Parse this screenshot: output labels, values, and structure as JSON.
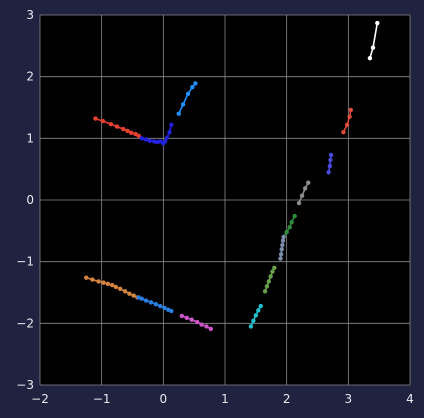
{
  "chart_data": {
    "type": "line",
    "title": "",
    "xlabel": "",
    "ylabel": "",
    "xlim": [
      -2,
      4
    ],
    "ylim": [
      -3,
      3
    ],
    "xticks": [
      -2,
      -1,
      0,
      1,
      2,
      3,
      4
    ],
    "yticks": [
      -3,
      -2,
      -1,
      0,
      1,
      2,
      3
    ],
    "grid": true,
    "background": "#000000",
    "figure_background": "#1f2340",
    "series": [
      {
        "color": "#ffffff",
        "x": [
          3.35,
          3.4,
          3.47
        ],
        "y": [
          2.3,
          2.47,
          2.87
        ]
      },
      {
        "color": "#e84030",
        "x": [
          -1.1,
          -0.98,
          -0.85,
          -0.75,
          -0.65,
          -0.58,
          -0.52,
          -0.45,
          -0.4
        ],
        "y": [
          1.32,
          1.28,
          1.23,
          1.19,
          1.15,
          1.12,
          1.09,
          1.07,
          1.04
        ]
      },
      {
        "color": "#2222dd",
        "x": [
          -0.35,
          -0.28,
          -0.22,
          -0.15,
          -0.1,
          -0.05,
          0.0,
          0.03,
          0.06,
          0.1,
          0.13
        ],
        "y": [
          1.0,
          0.98,
          0.96,
          0.95,
          0.94,
          0.95,
          0.92,
          0.95,
          1.01,
          1.1,
          1.22
        ]
      },
      {
        "color": "#1e90ff",
        "x": [
          0.25,
          0.32,
          0.4,
          0.47,
          0.52
        ],
        "y": [
          1.4,
          1.55,
          1.72,
          1.83,
          1.89
        ]
      },
      {
        "color": "#dd4b3a",
        "x": [
          2.92,
          2.98,
          3.02,
          3.04
        ],
        "y": [
          1.1,
          1.22,
          1.35,
          1.46
        ]
      },
      {
        "color": "#4a4ae0",
        "x": [
          2.68,
          2.7,
          2.71,
          2.72
        ],
        "y": [
          0.45,
          0.55,
          0.65,
          0.73
        ]
      },
      {
        "color": "#8c8c8c",
        "x": [
          2.2,
          2.25,
          2.3,
          2.35
        ],
        "y": [
          -0.05,
          0.07,
          0.19,
          0.28
        ]
      },
      {
        "color": "#2e8b3a",
        "x": [
          1.95,
          2.0,
          2.05,
          2.08,
          2.13
        ],
        "y": [
          -0.6,
          -0.52,
          -0.44,
          -0.36,
          -0.26
        ]
      },
      {
        "color": "#7b8da8",
        "x": [
          1.9,
          1.91,
          1.92,
          1.93,
          1.94,
          1.95
        ],
        "y": [
          -0.95,
          -0.88,
          -0.8,
          -0.73,
          -0.66,
          -0.6
        ]
      },
      {
        "color": "#6aa04a",
        "x": [
          1.65,
          1.68,
          1.71,
          1.74,
          1.77,
          1.8
        ],
        "y": [
          -1.48,
          -1.4,
          -1.32,
          -1.24,
          -1.16,
          -1.1
        ]
      },
      {
        "color": "#20c0cf",
        "x": [
          1.42,
          1.46,
          1.5,
          1.54,
          1.58
        ],
        "y": [
          -2.05,
          -1.96,
          -1.87,
          -1.79,
          -1.72
        ]
      },
      {
        "color": "#d4843e",
        "x": [
          -1.25,
          -1.15,
          -1.05,
          -0.97,
          -0.9,
          -0.83,
          -0.77,
          -0.7,
          -0.62,
          -0.55,
          -0.48,
          -0.42
        ],
        "y": [
          -1.26,
          -1.29,
          -1.32,
          -1.34,
          -1.36,
          -1.38,
          -1.41,
          -1.44,
          -1.48,
          -1.52,
          -1.55,
          -1.58
        ]
      },
      {
        "color": "#2a7fe0",
        "x": [
          -0.4,
          -0.35,
          -0.28,
          -0.2,
          -0.12,
          -0.05,
          0.02,
          0.08,
          0.13
        ],
        "y": [
          -1.58,
          -1.6,
          -1.63,
          -1.66,
          -1.69,
          -1.72,
          -1.75,
          -1.78,
          -1.8
        ]
      },
      {
        "color": "#cc55c8",
        "x": [
          0.3,
          0.38,
          0.46,
          0.55,
          0.62,
          0.7,
          0.77
        ],
        "y": [
          -1.88,
          -1.91,
          -1.94,
          -1.98,
          -2.02,
          -2.05,
          -2.09
        ]
      }
    ]
  }
}
